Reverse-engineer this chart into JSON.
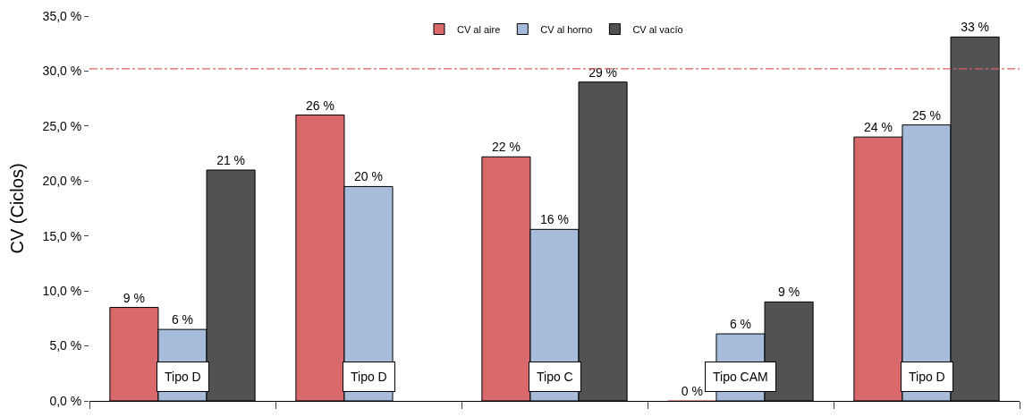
{
  "chart_data": {
    "type": "bar",
    "ylabel": "CV (Ciclos)",
    "categories": [
      null,
      null,
      null,
      null,
      null
    ],
    "series": [
      {
        "name": "CV al aire",
        "color": "#d9696a",
        "values": [
          8.5,
          26,
          22.2,
          0,
          24
        ],
        "value_labels": [
          "9 %",
          "26 %",
          "22 %",
          "0 %",
          "24 %"
        ]
      },
      {
        "name": "CV al horno",
        "color": "#a7bcdb",
        "values": [
          6.5,
          19.5,
          15.6,
          6.1,
          25.1
        ],
        "value_labels": [
          "6 %",
          "20 %",
          "16 %",
          "6 %",
          "25 %"
        ]
      },
      {
        "name": "CV al vacío",
        "color": "#505254",
        "values": [
          21,
          null,
          29,
          9,
          33.1
        ],
        "value_labels": [
          "21 %",
          null,
          "29 %",
          "9 %",
          "33 %"
        ]
      }
    ],
    "ylim": [
      0,
      35
    ],
    "yticks": [
      {
        "value": 0,
        "label": "0,0 %"
      },
      {
        "value": 5,
        "label": "5,0 %"
      },
      {
        "value": 10,
        "label": "10,0 %"
      },
      {
        "value": 15,
        "label": "15,0 %"
      },
      {
        "value": 20,
        "label": "20,0 %"
      },
      {
        "value": 25,
        "label": "25,0 %"
      },
      {
        "value": 30,
        "label": "30,0 %"
      },
      {
        "value": 35,
        "label": "35,0 %"
      }
    ],
    "ref_lines": [
      {
        "axis": "y",
        "value": 30.2,
        "color": "#e06060",
        "line_style": "dashed"
      }
    ],
    "annotations": [
      "Tipo D",
      "Tipo D",
      "Tipo C",
      "Tipo CAM",
      "Tipo D"
    ],
    "tick_labels": "y",
    "legend": "top"
  }
}
